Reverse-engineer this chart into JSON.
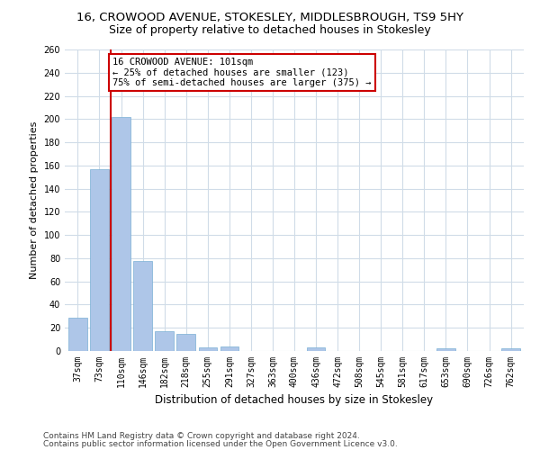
{
  "title1": "16, CROWOOD AVENUE, STOKESLEY, MIDDLESBROUGH, TS9 5HY",
  "title2": "Size of property relative to detached houses in Stokesley",
  "xlabel": "Distribution of detached houses by size in Stokesley",
  "ylabel": "Number of detached properties",
  "categories": [
    "37sqm",
    "73sqm",
    "110sqm",
    "146sqm",
    "182sqm",
    "218sqm",
    "255sqm",
    "291sqm",
    "327sqm",
    "363sqm",
    "400sqm",
    "436sqm",
    "472sqm",
    "508sqm",
    "545sqm",
    "581sqm",
    "617sqm",
    "653sqm",
    "690sqm",
    "726sqm",
    "762sqm"
  ],
  "values": [
    29,
    157,
    202,
    78,
    17,
    15,
    3,
    4,
    0,
    0,
    0,
    3,
    0,
    0,
    0,
    0,
    0,
    2,
    0,
    0,
    2
  ],
  "bar_color": "#aec6e8",
  "bar_edge_color": "#7aafd4",
  "annotation_text": "16 CROWOOD AVENUE: 101sqm\n← 25% of detached houses are smaller (123)\n75% of semi-detached houses are larger (375) →",
  "annotation_box_color": "#ffffff",
  "annotation_box_edge_color": "#cc0000",
  "red_line_color": "#cc0000",
  "ylim": [
    0,
    260
  ],
  "yticks": [
    0,
    20,
    40,
    60,
    80,
    100,
    120,
    140,
    160,
    180,
    200,
    220,
    240,
    260
  ],
  "footnote1": "Contains HM Land Registry data © Crown copyright and database right 2024.",
  "footnote2": "Contains public sector information licensed under the Open Government Licence v3.0.",
  "bg_color": "#ffffff",
  "grid_color": "#d0dce8",
  "title1_fontsize": 9.5,
  "title2_fontsize": 9,
  "xlabel_fontsize": 8.5,
  "ylabel_fontsize": 8,
  "tick_fontsize": 7,
  "annot_fontsize": 7.5,
  "footnote_fontsize": 6.5
}
